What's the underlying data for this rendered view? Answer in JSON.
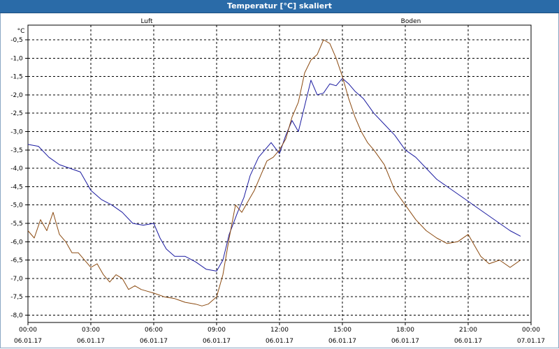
{
  "window": {
    "title": "Temperatur [°C] skaliert"
  },
  "chart_data": {
    "type": "line",
    "ylabel": "°C",
    "ylim": [
      -8.2,
      -0.1
    ],
    "yticks": [
      -0.5,
      -1.0,
      -1.5,
      -2.0,
      -2.5,
      -3.0,
      -3.5,
      -4.0,
      -4.5,
      -5.0,
      -5.5,
      -6.0,
      -6.5,
      -7.0,
      -7.5,
      -8.0
    ],
    "ytick_labels": [
      "-0,5",
      "-1,0",
      "-1,5",
      "-2,0",
      "-2,5",
      "-3,0",
      "-3,5",
      "-4,0",
      "-4,5",
      "-5,0",
      "-5,5",
      "-6,0",
      "-6,5",
      "-7,0",
      "-7,5",
      "-8,0"
    ],
    "xlim": [
      0,
      24
    ],
    "xticks": [
      0,
      3,
      6,
      9,
      12,
      15,
      18,
      21,
      24
    ],
    "xtick_time_labels": [
      "00:00",
      "03:00",
      "06:00",
      "09:00",
      "12:00",
      "15:00",
      "18:00",
      "21:00",
      "00:00"
    ],
    "xtick_date_labels": [
      "06.01.17",
      "06.01.17",
      "06.01.17",
      "06.01.17",
      "06.01.17",
      "06.01.17",
      "06.01.17",
      "06.01.17",
      "07.01.17"
    ],
    "grid": true,
    "series": [
      {
        "name": "Luft",
        "color": "#1a1aa0",
        "x": [
          0,
          0.5,
          1.0,
          1.5,
          2.0,
          2.5,
          3.0,
          3.5,
          4.0,
          4.5,
          5.0,
          5.5,
          6.0,
          6.3,
          6.6,
          7.0,
          7.5,
          8.0,
          8.5,
          9.0,
          9.3,
          9.6,
          10.0,
          10.3,
          10.6,
          11.0,
          11.3,
          11.6,
          12.0,
          12.3,
          12.6,
          12.9,
          13.2,
          13.5,
          13.8,
          14.1,
          14.4,
          14.7,
          15.0,
          15.3,
          15.6,
          16.0,
          16.5,
          17.0,
          17.5,
          18.0,
          18.5,
          19.0,
          19.5,
          20.0,
          20.5,
          21.0,
          21.5,
          22.0,
          22.5,
          23.0,
          23.5
        ],
        "y": [
          -3.35,
          -3.4,
          -3.7,
          -3.9,
          -4.0,
          -4.1,
          -4.6,
          -4.85,
          -5.0,
          -5.2,
          -5.5,
          -5.55,
          -5.5,
          -5.9,
          -6.2,
          -6.4,
          -6.4,
          -6.55,
          -6.75,
          -6.8,
          -6.5,
          -5.8,
          -5.2,
          -4.8,
          -4.2,
          -3.7,
          -3.5,
          -3.3,
          -3.6,
          -3.1,
          -2.7,
          -3.0,
          -2.3,
          -1.6,
          -2.0,
          -1.95,
          -1.7,
          -1.75,
          -1.55,
          -1.7,
          -1.9,
          -2.1,
          -2.5,
          -2.8,
          -3.1,
          -3.5,
          -3.7,
          -4.0,
          -4.3,
          -4.5,
          -4.7,
          -4.9,
          -5.1,
          -5.3,
          -5.5,
          -5.7,
          -5.85
        ]
      },
      {
        "name": "Boden",
        "color": "#8b4a10",
        "x": [
          0,
          0.3,
          0.6,
          0.9,
          1.2,
          1.5,
          1.8,
          2.1,
          2.4,
          2.7,
          3.0,
          3.3,
          3.6,
          3.9,
          4.2,
          4.5,
          4.8,
          5.1,
          5.4,
          5.7,
          6.0,
          6.5,
          7.0,
          7.5,
          8.0,
          8.3,
          8.6,
          9.0,
          9.3,
          9.6,
          9.9,
          10.2,
          10.5,
          10.8,
          11.1,
          11.4,
          11.7,
          12.0,
          12.3,
          12.6,
          12.9,
          13.2,
          13.5,
          13.8,
          14.1,
          14.4,
          14.7,
          15.0,
          15.3,
          15.6,
          15.9,
          16.2,
          16.5,
          17.0,
          17.5,
          18.0,
          18.5,
          19.0,
          19.5,
          20.0,
          20.5,
          21.0,
          21.3,
          21.6,
          22.0,
          22.5,
          23.0,
          23.5
        ],
        "y": [
          -5.7,
          -5.9,
          -5.4,
          -5.7,
          -5.2,
          -5.8,
          -6.0,
          -6.3,
          -6.3,
          -6.5,
          -6.7,
          -6.6,
          -6.9,
          -7.1,
          -6.9,
          -7.0,
          -7.3,
          -7.2,
          -7.3,
          -7.35,
          -7.4,
          -7.5,
          -7.55,
          -7.65,
          -7.7,
          -7.75,
          -7.7,
          -7.5,
          -6.9,
          -5.9,
          -5.0,
          -5.2,
          -4.9,
          -4.6,
          -4.2,
          -3.8,
          -3.7,
          -3.5,
          -3.2,
          -2.6,
          -2.2,
          -1.4,
          -1.05,
          -0.9,
          -0.5,
          -0.6,
          -1.0,
          -1.5,
          -2.1,
          -2.6,
          -3.0,
          -3.3,
          -3.5,
          -3.9,
          -4.6,
          -5.0,
          -5.4,
          -5.7,
          -5.9,
          -6.05,
          -6.0,
          -5.8,
          -6.1,
          -6.4,
          -6.6,
          -6.5,
          -6.7,
          -6.5
        ]
      }
    ]
  }
}
